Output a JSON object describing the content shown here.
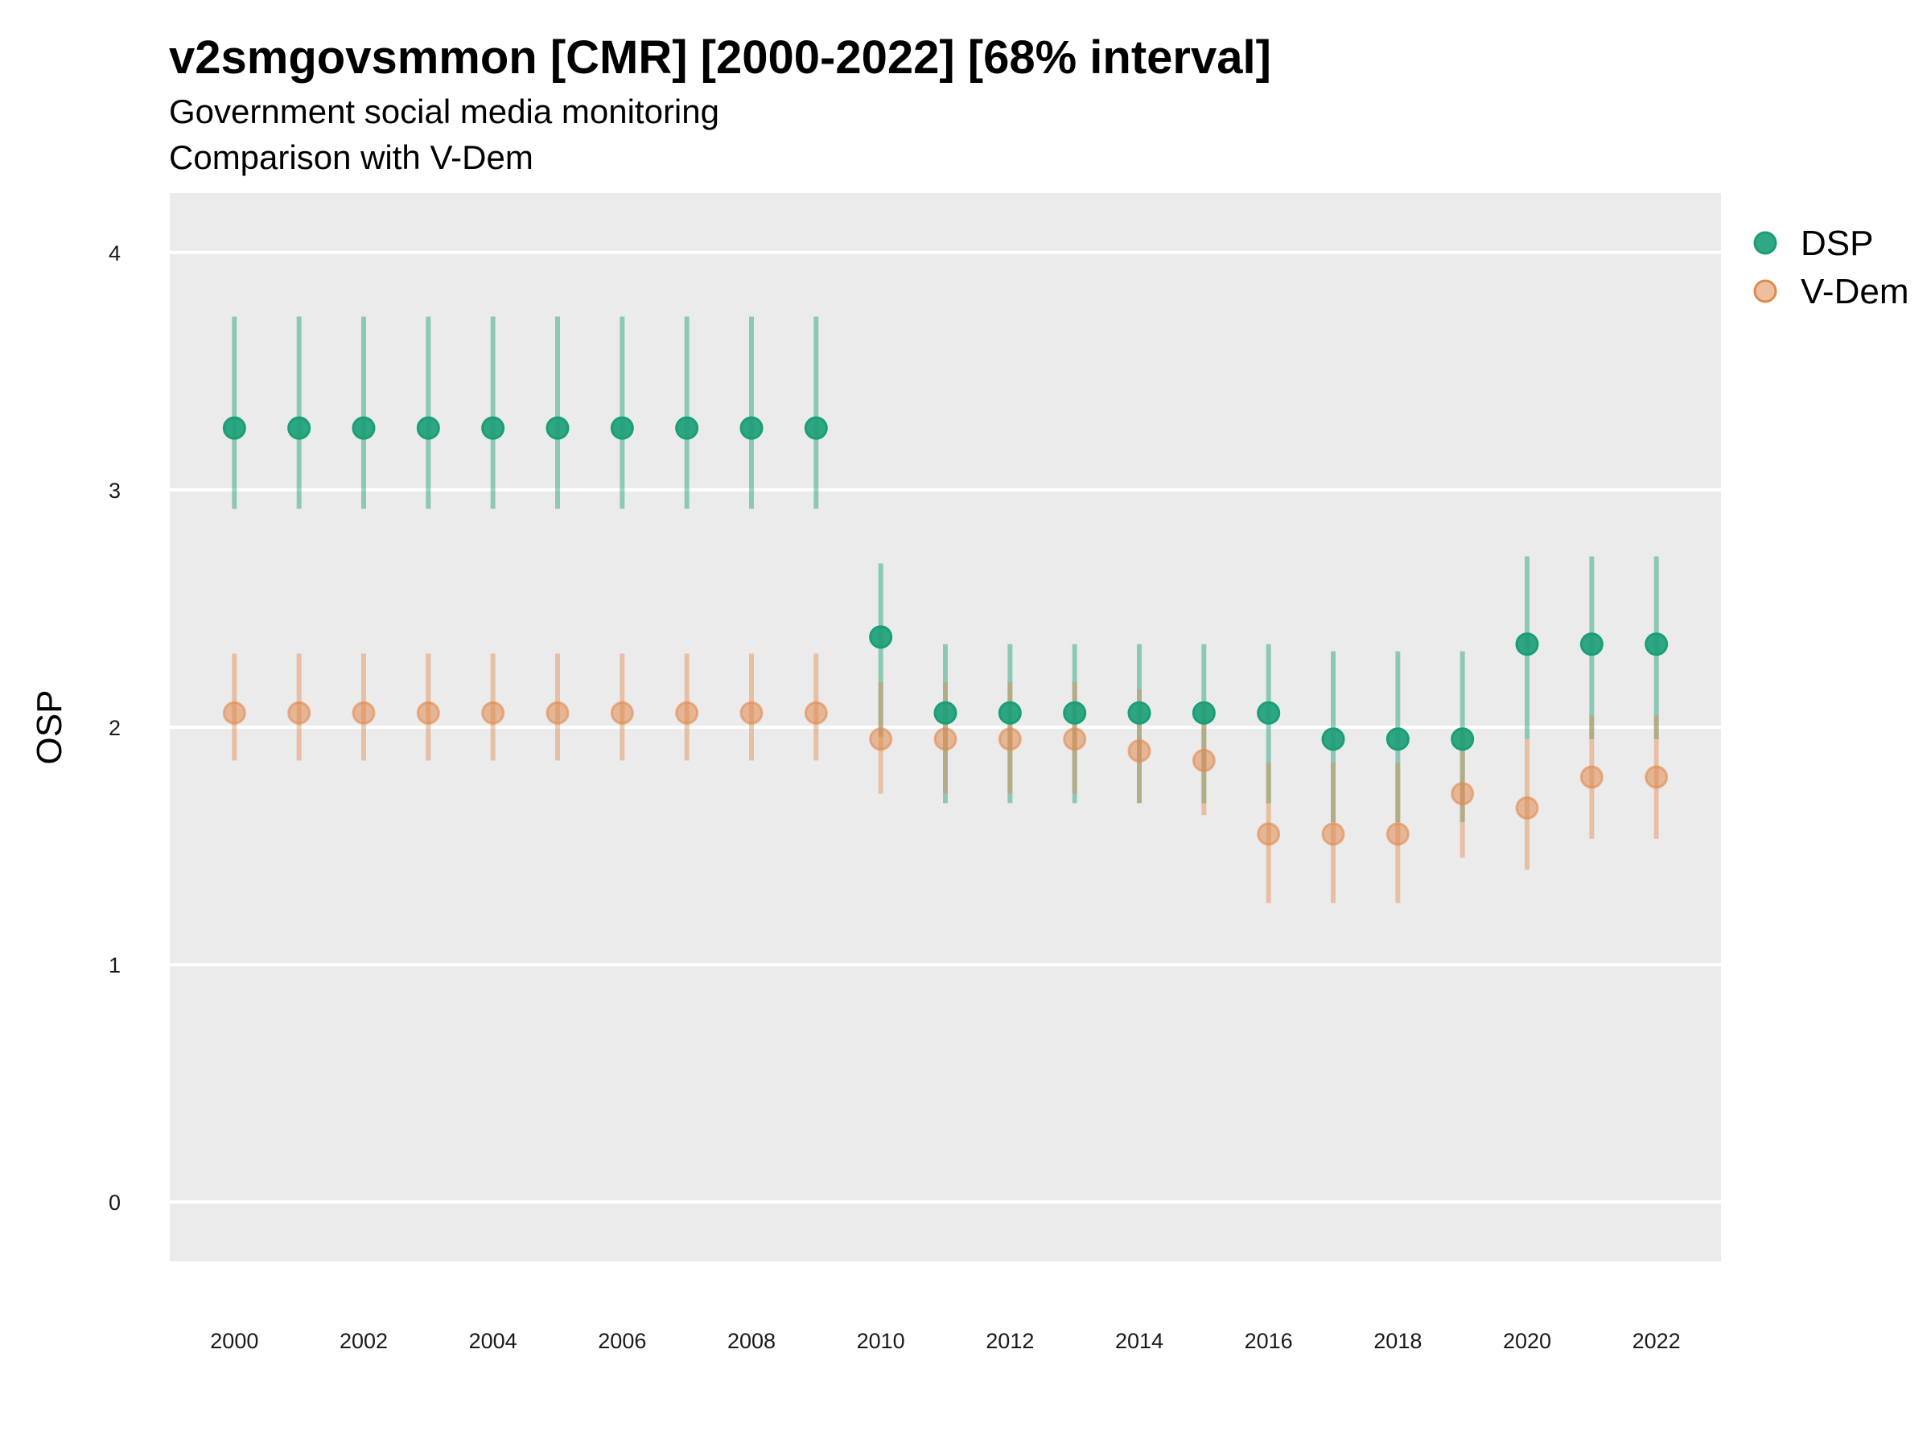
{
  "chart_data": {
    "type": "scatter",
    "title": "v2smgovsmmon [CMR] [2000-2022] [68% interval]",
    "subtitle": "Government social media monitoring",
    "caption": "Comparison with V-Dem",
    "xlabel": "",
    "ylabel": "OSP",
    "xlim": [
      1999,
      2023
    ],
    "ylim": [
      -0.25,
      4.25
    ],
    "x_ticks": [
      "2000",
      "2002",
      "2004",
      "2006",
      "2008",
      "2010",
      "2012",
      "2014",
      "2016",
      "2018",
      "2020",
      "2022"
    ],
    "y_ticks": [
      "0",
      "1",
      "2",
      "3",
      "4"
    ],
    "grid": true,
    "legend_position": "right",
    "x": [
      2000,
      2001,
      2002,
      2003,
      2004,
      2005,
      2006,
      2007,
      2008,
      2009,
      2010,
      2011,
      2012,
      2013,
      2014,
      2015,
      2016,
      2017,
      2018,
      2019,
      2020,
      2021,
      2022
    ],
    "series": [
      {
        "name": "DSP",
        "color": "#1b9e77",
        "values": [
          3.26,
          3.26,
          3.26,
          3.26,
          3.26,
          3.26,
          3.26,
          3.26,
          3.26,
          3.26,
          2.38,
          2.06,
          2.06,
          2.06,
          2.06,
          2.06,
          2.06,
          1.95,
          1.95,
          1.95,
          2.35,
          2.35,
          2.35
        ],
        "lower": [
          2.92,
          2.92,
          2.92,
          2.92,
          2.92,
          2.92,
          2.92,
          2.92,
          2.92,
          2.92,
          1.96,
          1.68,
          1.68,
          1.68,
          1.68,
          1.68,
          1.68,
          1.6,
          1.6,
          1.6,
          1.95,
          1.95,
          1.95
        ],
        "upper": [
          3.73,
          3.73,
          3.73,
          3.73,
          3.73,
          3.73,
          3.73,
          3.73,
          3.73,
          3.73,
          2.69,
          2.35,
          2.35,
          2.35,
          2.35,
          2.35,
          2.35,
          2.32,
          2.32,
          2.32,
          2.72,
          2.72,
          2.72
        ]
      },
      {
        "name": "V-Dem",
        "color": "#e08a4e",
        "values": [
          2.06,
          2.06,
          2.06,
          2.06,
          2.06,
          2.06,
          2.06,
          2.06,
          2.06,
          2.06,
          1.95,
          1.95,
          1.95,
          1.95,
          1.9,
          1.86,
          1.55,
          1.55,
          1.55,
          1.72,
          1.66,
          1.79,
          1.79
        ],
        "lower": [
          1.86,
          1.86,
          1.86,
          1.86,
          1.86,
          1.86,
          1.86,
          1.86,
          1.86,
          1.86,
          1.72,
          1.72,
          1.72,
          1.72,
          1.68,
          1.63,
          1.26,
          1.26,
          1.26,
          1.45,
          1.4,
          1.53,
          1.53
        ],
        "upper": [
          2.31,
          2.31,
          2.31,
          2.31,
          2.31,
          2.31,
          2.31,
          2.31,
          2.31,
          2.31,
          2.19,
          2.19,
          2.19,
          2.19,
          2.16,
          2.1,
          1.85,
          1.85,
          1.85,
          1.98,
          1.95,
          2.05,
          2.05
        ]
      }
    ]
  }
}
